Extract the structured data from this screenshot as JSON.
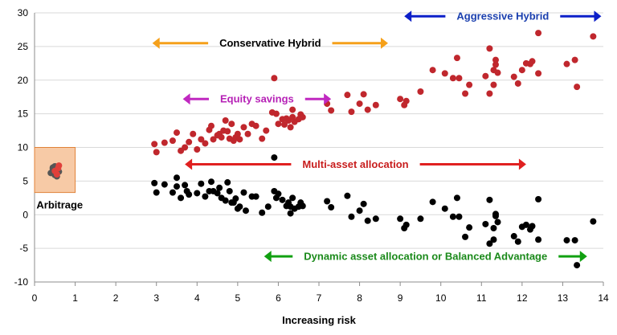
{
  "chart_data": {
    "type": "scatter",
    "xlabel": "Increasing risk",
    "ylabel": "",
    "xlim": [
      0,
      14
    ],
    "ylim": [
      -10,
      30
    ],
    "xticks": [
      "0",
      "1",
      "2",
      "3",
      "4",
      "5",
      "6",
      "7",
      "8",
      "9",
      "10",
      "11",
      "12",
      "13",
      "14"
    ],
    "yticks": [
      "-10",
      "-5",
      "0",
      "5",
      "10",
      "15",
      "20",
      "25",
      "30"
    ],
    "grid": "horizontal",
    "series": [
      {
        "name": "",
        "color": "#c0272d",
        "points": [
          [
            2.95,
            10.5
          ],
          [
            3.0,
            9.3
          ],
          [
            3.2,
            10.7
          ],
          [
            3.4,
            11.0
          ],
          [
            3.5,
            12.2
          ],
          [
            3.6,
            9.5
          ],
          [
            3.7,
            10.0
          ],
          [
            3.8,
            10.8
          ],
          [
            3.9,
            12.0
          ],
          [
            4.0,
            9.7
          ],
          [
            4.1,
            11.2
          ],
          [
            4.2,
            10.6
          ],
          [
            4.3,
            12.6
          ],
          [
            4.35,
            13.2
          ],
          [
            4.4,
            11.2
          ],
          [
            4.5,
            11.8
          ],
          [
            4.55,
            12.0
          ],
          [
            4.6,
            11.5
          ],
          [
            4.65,
            12.5
          ],
          [
            4.7,
            14.0
          ],
          [
            4.75,
            12.4
          ],
          [
            4.8,
            11.3
          ],
          [
            4.85,
            13.5
          ],
          [
            4.9,
            11.0
          ],
          [
            4.95,
            11.5
          ],
          [
            5.0,
            12.0
          ],
          [
            5.05,
            11.2
          ],
          [
            5.15,
            13.0
          ],
          [
            5.25,
            12.0
          ],
          [
            5.35,
            13.5
          ],
          [
            5.45,
            13.2
          ],
          [
            5.6,
            11.3
          ],
          [
            5.7,
            12.5
          ],
          [
            5.85,
            15.2
          ],
          [
            5.95,
            15.0
          ],
          [
            5.9,
            20.3
          ],
          [
            6.0,
            13.5
          ],
          [
            6.1,
            14.2
          ],
          [
            6.15,
            13.4
          ],
          [
            6.25,
            14.0
          ],
          [
            6.3,
            13.0
          ],
          [
            6.35,
            14.5
          ],
          [
            6.4,
            13.8
          ],
          [
            6.5,
            14.2
          ],
          [
            6.55,
            14.9
          ],
          [
            6.6,
            14.5
          ],
          [
            6.35,
            15.6
          ],
          [
            6.2,
            14.3
          ],
          [
            7.2,
            16.5
          ],
          [
            7.3,
            15.5
          ],
          [
            7.7,
            17.8
          ],
          [
            7.8,
            15.3
          ],
          [
            8.0,
            16.5
          ],
          [
            8.1,
            17.9
          ],
          [
            8.2,
            15.6
          ],
          [
            8.4,
            16.3
          ],
          [
            9.0,
            17.2
          ],
          [
            9.15,
            16.9
          ],
          [
            9.1,
            16.3
          ],
          [
            9.5,
            18.3
          ],
          [
            9.8,
            21.5
          ],
          [
            10.1,
            21.0
          ],
          [
            10.3,
            20.3
          ],
          [
            10.4,
            23.3
          ],
          [
            10.45,
            20.3
          ],
          [
            10.6,
            18.0
          ],
          [
            10.7,
            19.3
          ],
          [
            11.1,
            20.6
          ],
          [
            11.2,
            24.7
          ],
          [
            11.2,
            18.0
          ],
          [
            11.3,
            21.5
          ],
          [
            11.3,
            19.3
          ],
          [
            11.35,
            23.0
          ],
          [
            11.4,
            21.1
          ],
          [
            11.35,
            22.3
          ],
          [
            11.8,
            20.5
          ],
          [
            11.9,
            19.5
          ],
          [
            12.0,
            21.5
          ],
          [
            12.1,
            22.5
          ],
          [
            12.2,
            22.4
          ],
          [
            12.25,
            22.8
          ],
          [
            12.4,
            21.0
          ],
          [
            12.4,
            27.0
          ],
          [
            13.1,
            22.4
          ],
          [
            13.3,
            23.0
          ],
          [
            13.35,
            19.0
          ],
          [
            13.75,
            26.5
          ]
        ]
      },
      {
        "name": "",
        "color": "#000000",
        "points": [
          [
            2.95,
            4.7
          ],
          [
            3.0,
            3.3
          ],
          [
            3.2,
            4.5
          ],
          [
            3.4,
            3.3
          ],
          [
            3.5,
            5.5
          ],
          [
            3.5,
            4.2
          ],
          [
            3.6,
            2.5
          ],
          [
            3.7,
            4.4
          ],
          [
            3.75,
            3.5
          ],
          [
            3.8,
            3.0
          ],
          [
            4.0,
            3.2
          ],
          [
            4.1,
            4.6
          ],
          [
            4.2,
            2.7
          ],
          [
            4.3,
            3.5
          ],
          [
            4.35,
            4.9
          ],
          [
            4.4,
            3.5
          ],
          [
            4.5,
            3.2
          ],
          [
            4.55,
            4.0
          ],
          [
            4.6,
            2.5
          ],
          [
            4.7,
            2.1
          ],
          [
            4.75,
            4.8
          ],
          [
            4.8,
            3.5
          ],
          [
            4.85,
            1.8
          ],
          [
            4.9,
            1.8
          ],
          [
            4.95,
            2.4
          ],
          [
            5.0,
            0.9
          ],
          [
            5.05,
            1.2
          ],
          [
            5.15,
            3.3
          ],
          [
            5.2,
            0.6
          ],
          [
            5.35,
            2.7
          ],
          [
            5.45,
            2.7
          ],
          [
            5.6,
            0.3
          ],
          [
            5.75,
            1.2
          ],
          [
            5.9,
            8.5
          ],
          [
            5.9,
            3.5
          ],
          [
            5.95,
            2.5
          ],
          [
            6.0,
            3.1
          ],
          [
            6.1,
            2.2
          ],
          [
            6.2,
            1.3
          ],
          [
            6.25,
            1.8
          ],
          [
            6.3,
            1.2
          ],
          [
            6.35,
            2.5
          ],
          [
            6.4,
            0.9
          ],
          [
            6.5,
            1.2
          ],
          [
            6.55,
            1.8
          ],
          [
            6.6,
            1.3
          ],
          [
            6.3,
            0.2
          ],
          [
            7.2,
            2.0
          ],
          [
            7.3,
            1.1
          ],
          [
            7.7,
            2.8
          ],
          [
            7.8,
            -0.3
          ],
          [
            8.0,
            0.6
          ],
          [
            8.1,
            1.6
          ],
          [
            8.2,
            -0.9
          ],
          [
            8.4,
            -0.6
          ],
          [
            9.0,
            -0.6
          ],
          [
            9.1,
            -2.0
          ],
          [
            9.15,
            -1.5
          ],
          [
            9.5,
            -0.6
          ],
          [
            9.8,
            1.9
          ],
          [
            10.1,
            0.9
          ],
          [
            10.3,
            -0.3
          ],
          [
            10.4,
            2.5
          ],
          [
            10.45,
            -0.3
          ],
          [
            10.6,
            -3.3
          ],
          [
            10.7,
            -1.9
          ],
          [
            11.1,
            -1.4
          ],
          [
            11.2,
            2.2
          ],
          [
            11.2,
            -4.3
          ],
          [
            11.3,
            -2.0
          ],
          [
            11.3,
            -3.7
          ],
          [
            11.35,
            0.1
          ],
          [
            11.4,
            -1.1
          ],
          [
            11.35,
            -0.2
          ],
          [
            11.8,
            -3.2
          ],
          [
            11.9,
            -4.0
          ],
          [
            12.0,
            -1.8
          ],
          [
            12.1,
            -1.5
          ],
          [
            12.2,
            -2.2
          ],
          [
            12.25,
            -1.7
          ],
          [
            12.4,
            -3.7
          ],
          [
            12.4,
            2.3
          ],
          [
            13.1,
            -3.8
          ],
          [
            13.3,
            -3.8
          ],
          [
            13.35,
            -7.5
          ],
          [
            13.75,
            -1.0
          ]
        ]
      },
      {
        "name": "",
        "color": "#555555",
        "points": [
          [
            0.4,
            6.2
          ],
          [
            0.45,
            7.0
          ],
          [
            0.5,
            5.9
          ],
          [
            0.55,
            6.6
          ],
          [
            0.45,
            6.8
          ],
          [
            0.5,
            7.2
          ],
          [
            0.6,
            6.4
          ],
          [
            0.55,
            5.7
          ]
        ]
      },
      {
        "name": "",
        "color": "#e0403a",
        "points": [
          [
            0.55,
            6.0
          ],
          [
            0.6,
            7.3
          ],
          [
            0.5,
            6.5
          ],
          [
            0.58,
            6.9
          ]
        ]
      }
    ],
    "annotations": [
      {
        "text": "Arbitrage",
        "color": "#000000"
      },
      {
        "text": "Conservative Hybrid",
        "color": "#000000",
        "arrow_color": "#f5a01a",
        "x_from": 2.9,
        "x_to": 8.7,
        "y": 25.5
      },
      {
        "text": "Aggressive  Hybrid",
        "color": "#1a3fae",
        "arrow_color": "#0c1fc8",
        "x_from": 9.1,
        "x_to": 13.95,
        "y": 29.5
      },
      {
        "text": "Equity savings",
        "color": "#b621b6",
        "arrow_color": "#c028c0",
        "x_from": 3.65,
        "x_to": 7.3,
        "y": 17.2
      },
      {
        "text": "Multi-asset allocation",
        "color": "#c81e1e",
        "arrow_color": "#e02020",
        "x_from": 3.7,
        "x_to": 12.1,
        "y": 7.5
      },
      {
        "text": "Dynamic asset allocation or Balanced Advantage",
        "color": "#1b8a1b",
        "arrow_color": "#11a011",
        "x_from": 5.65,
        "x_to": 13.6,
        "y": -6.2
      }
    ],
    "arbitrage_box": {
      "x_from": 0.0,
      "x_to": 1.0,
      "y_from": 3.3,
      "y_to": 10.0,
      "fill": "#f7caa6",
      "stroke": "#e0833a"
    }
  }
}
